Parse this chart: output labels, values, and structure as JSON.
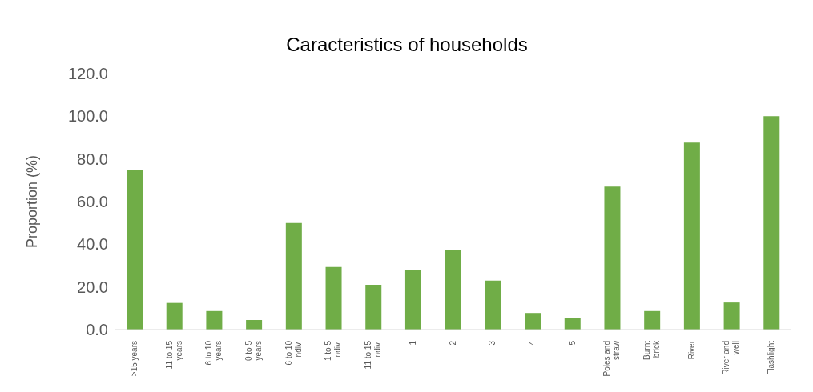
{
  "chart_data": {
    "type": "bar",
    "title": "Caracteristics of households",
    "ylabel": "Proportion (%)",
    "categories": [
      ">15 years",
      "11 to 15 years",
      "6 to 10 years",
      "0 to 5 years",
      "6 to 10 indiv.",
      "1 to 5 indiv.",
      "11 to 15 indiv.",
      "1",
      "2",
      "3",
      "4",
      "5",
      "Poles and straw",
      "Burnt brick",
      "River",
      "River and well",
      "Flashlight"
    ],
    "values": [
      75,
      12.5,
      8.7,
      4.5,
      50,
      29.3,
      21,
      28,
      37.5,
      23,
      7.8,
      5.5,
      67,
      8.7,
      87.7,
      12.7,
      100
    ],
    "color": "#70ad47",
    "ylim": [
      0,
      120
    ],
    "yticks": [
      {
        "value": 0,
        "label": "0.0"
      },
      {
        "value": 20,
        "label": "20.0"
      },
      {
        "value": 40,
        "label": "40.0"
      },
      {
        "value": 60,
        "label": "60.0"
      },
      {
        "value": 80,
        "label": "80.0"
      },
      {
        "value": 100,
        "label": "100.0"
      },
      {
        "value": 120,
        "label": "120.0"
      }
    ],
    "grid": false,
    "legend": false
  }
}
